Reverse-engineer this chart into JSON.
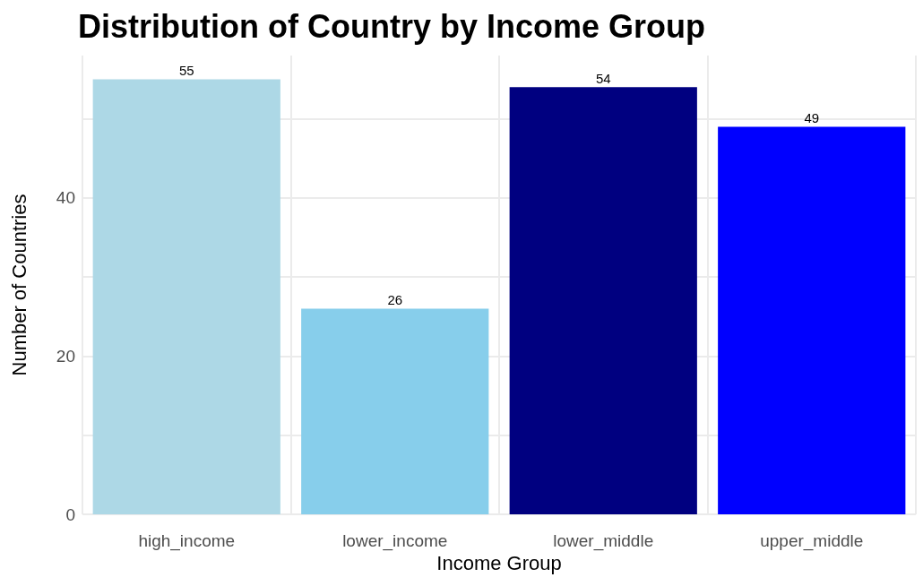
{
  "chart_data": {
    "type": "bar",
    "title": "Distribution of Country by Income Group",
    "xlabel": "Income Group",
    "ylabel": "Number of Countries",
    "categories": [
      "high_income",
      "lower_income",
      "lower_middle",
      "upper_middle"
    ],
    "values": [
      55,
      26,
      54,
      49
    ],
    "colors": [
      "#add8e6",
      "#87ceeb",
      "#000080",
      "#0000ff"
    ],
    "ylim": [
      0,
      58
    ],
    "yticks": [
      0,
      {
        "value": 10,
        "label": null
      },
      20,
      {
        "value": 30,
        "label": null
      },
      40,
      {
        "value": 50,
        "label": null
      }
    ],
    "grid": true,
    "data_labels": true
  }
}
